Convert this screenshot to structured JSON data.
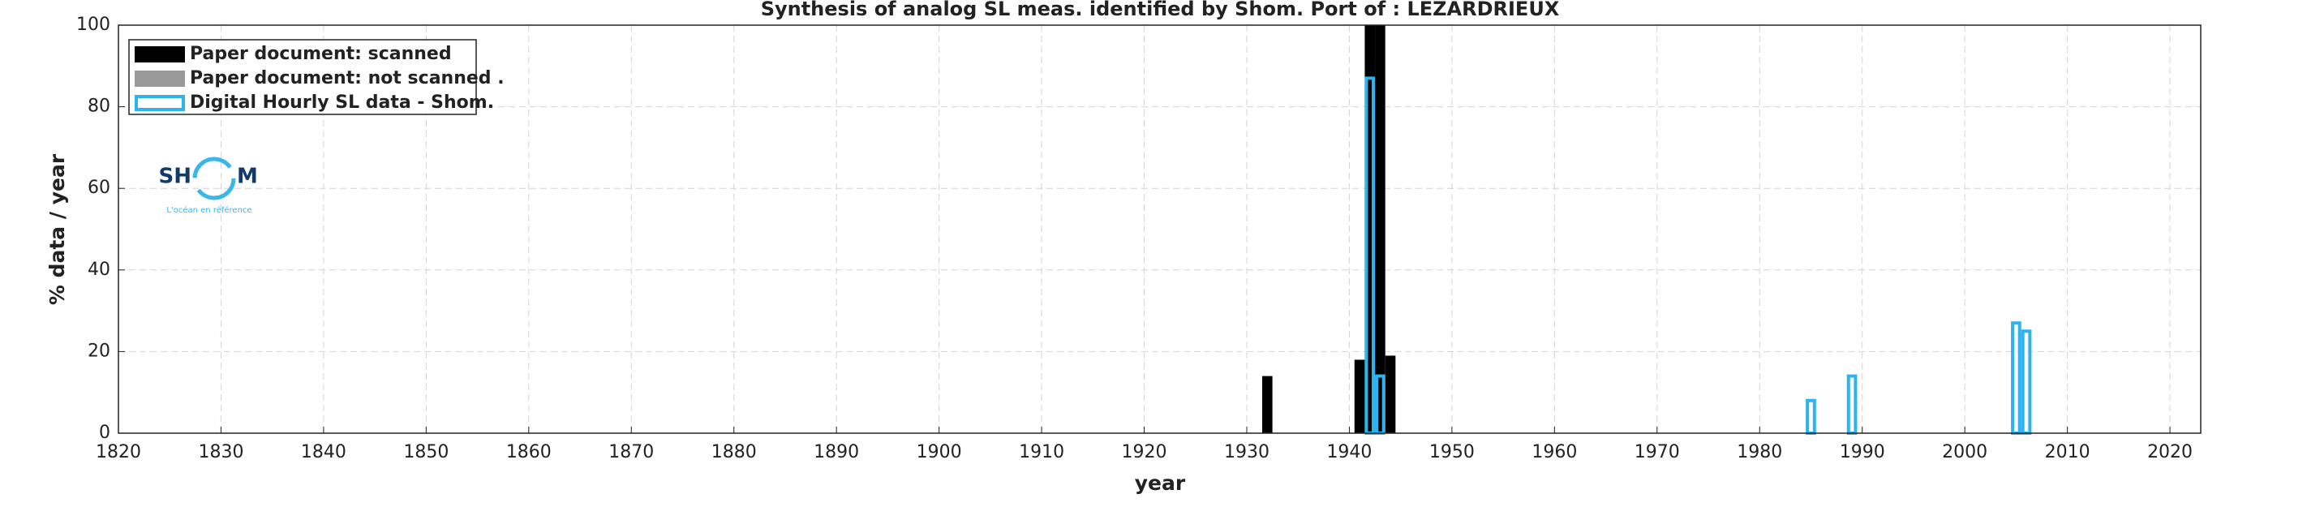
{
  "chart_data": {
    "type": "bar",
    "title": "Synthesis of analog SL meas. identified by Shom. Port of : LEZARDRIEUX",
    "xlabel": "year",
    "ylabel": "% data / year",
    "xlim": [
      1820,
      2023
    ],
    "ylim": [
      0,
      100
    ],
    "xticks": [
      1820,
      1830,
      1840,
      1850,
      1860,
      1870,
      1880,
      1890,
      1900,
      1910,
      1920,
      1930,
      1940,
      1950,
      1960,
      1970,
      1980,
      1990,
      2000,
      2010,
      2020
    ],
    "yticks": [
      0,
      20,
      40,
      60,
      80,
      100
    ],
    "grid": true,
    "legend": "upper left",
    "series": [
      {
        "name": "Paper document: scanned",
        "color": "#000000",
        "style": "filled",
        "x": [
          1932,
          1941,
          1942,
          1943,
          1944
        ],
        "values": [
          14,
          18,
          100,
          100,
          19
        ]
      },
      {
        "name": "Paper document: not scanned   .",
        "color": "#999999",
        "style": "filled",
        "x": [],
        "values": []
      },
      {
        "name": "Digital Hourly SL data - Shom.",
        "color": "#2fb3ee",
        "style": "outline",
        "x": [
          1942,
          1943,
          1985,
          1989,
          2005,
          2006
        ],
        "values": [
          87,
          14,
          8,
          14,
          27,
          25
        ]
      }
    ]
  },
  "logo": {
    "left": "SH",
    "right": "M",
    "tagline": "L'océan en référence"
  }
}
